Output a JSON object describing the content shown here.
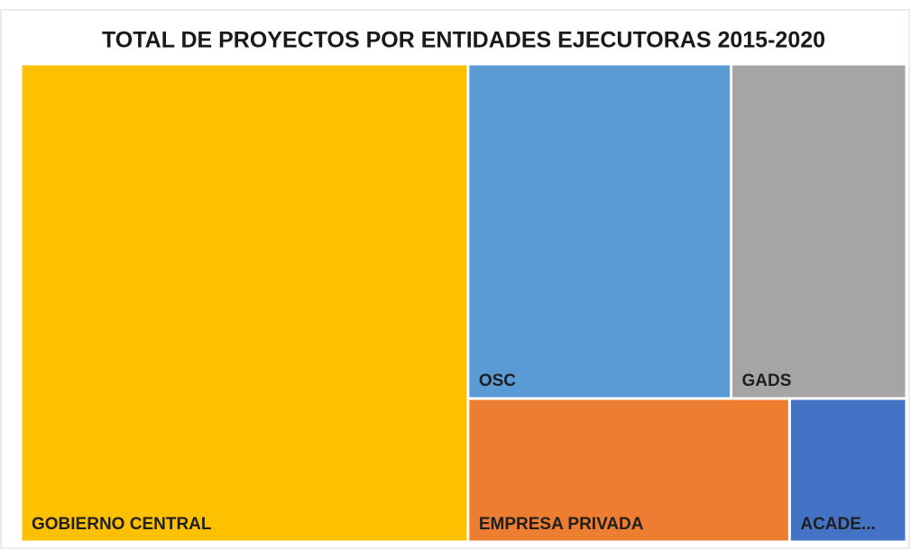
{
  "chart_data": {
    "type": "treemap",
    "title": "TOTAL DE PROYECTOS POR ENTIDADES EJECUTORAS 2015-2020",
    "categories": [
      "GOBIERNO CENTRAL",
      "OSC",
      "GADS",
      "EMPRESA PRIVADA",
      "ACADE..."
    ],
    "values": [
      51,
      21,
      14,
      11,
      4
    ],
    "colors": [
      "#ffc000",
      "#5b9bd5",
      "#a5a5a5",
      "#ed7d31",
      "#4472c4"
    ]
  }
}
